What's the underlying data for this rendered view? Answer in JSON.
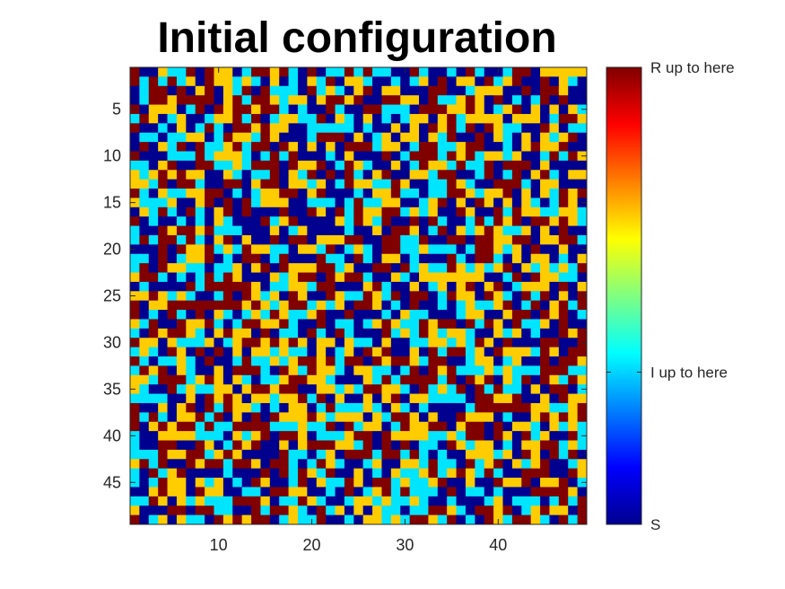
{
  "chart_data": {
    "type": "heatmap",
    "title": "Initial configuration",
    "grid_size": [
      49,
      49
    ],
    "xlim": [
      0.5,
      49.5
    ],
    "ylim": [
      0.5,
      49.5
    ],
    "y_axis_direction": "reversed",
    "xticks": [
      10,
      20,
      30,
      40
    ],
    "yticks": [
      5,
      10,
      15,
      20,
      25,
      30,
      35,
      40,
      45
    ],
    "state_colors": [
      "#00008f",
      "#00e5ff",
      "#ffcc00",
      "#800000"
    ],
    "value_range": [
      0,
      1
    ],
    "colormap": "jet",
    "colorbar": {
      "position": "right",
      "ticks": [
        {
          "value": 0,
          "label": "S"
        },
        {
          "value": 0.333,
          "label": "I up to here"
        },
        {
          "value": 1,
          "label": "R up to here"
        }
      ]
    },
    "random_seed": 20240611,
    "grid": false
  }
}
